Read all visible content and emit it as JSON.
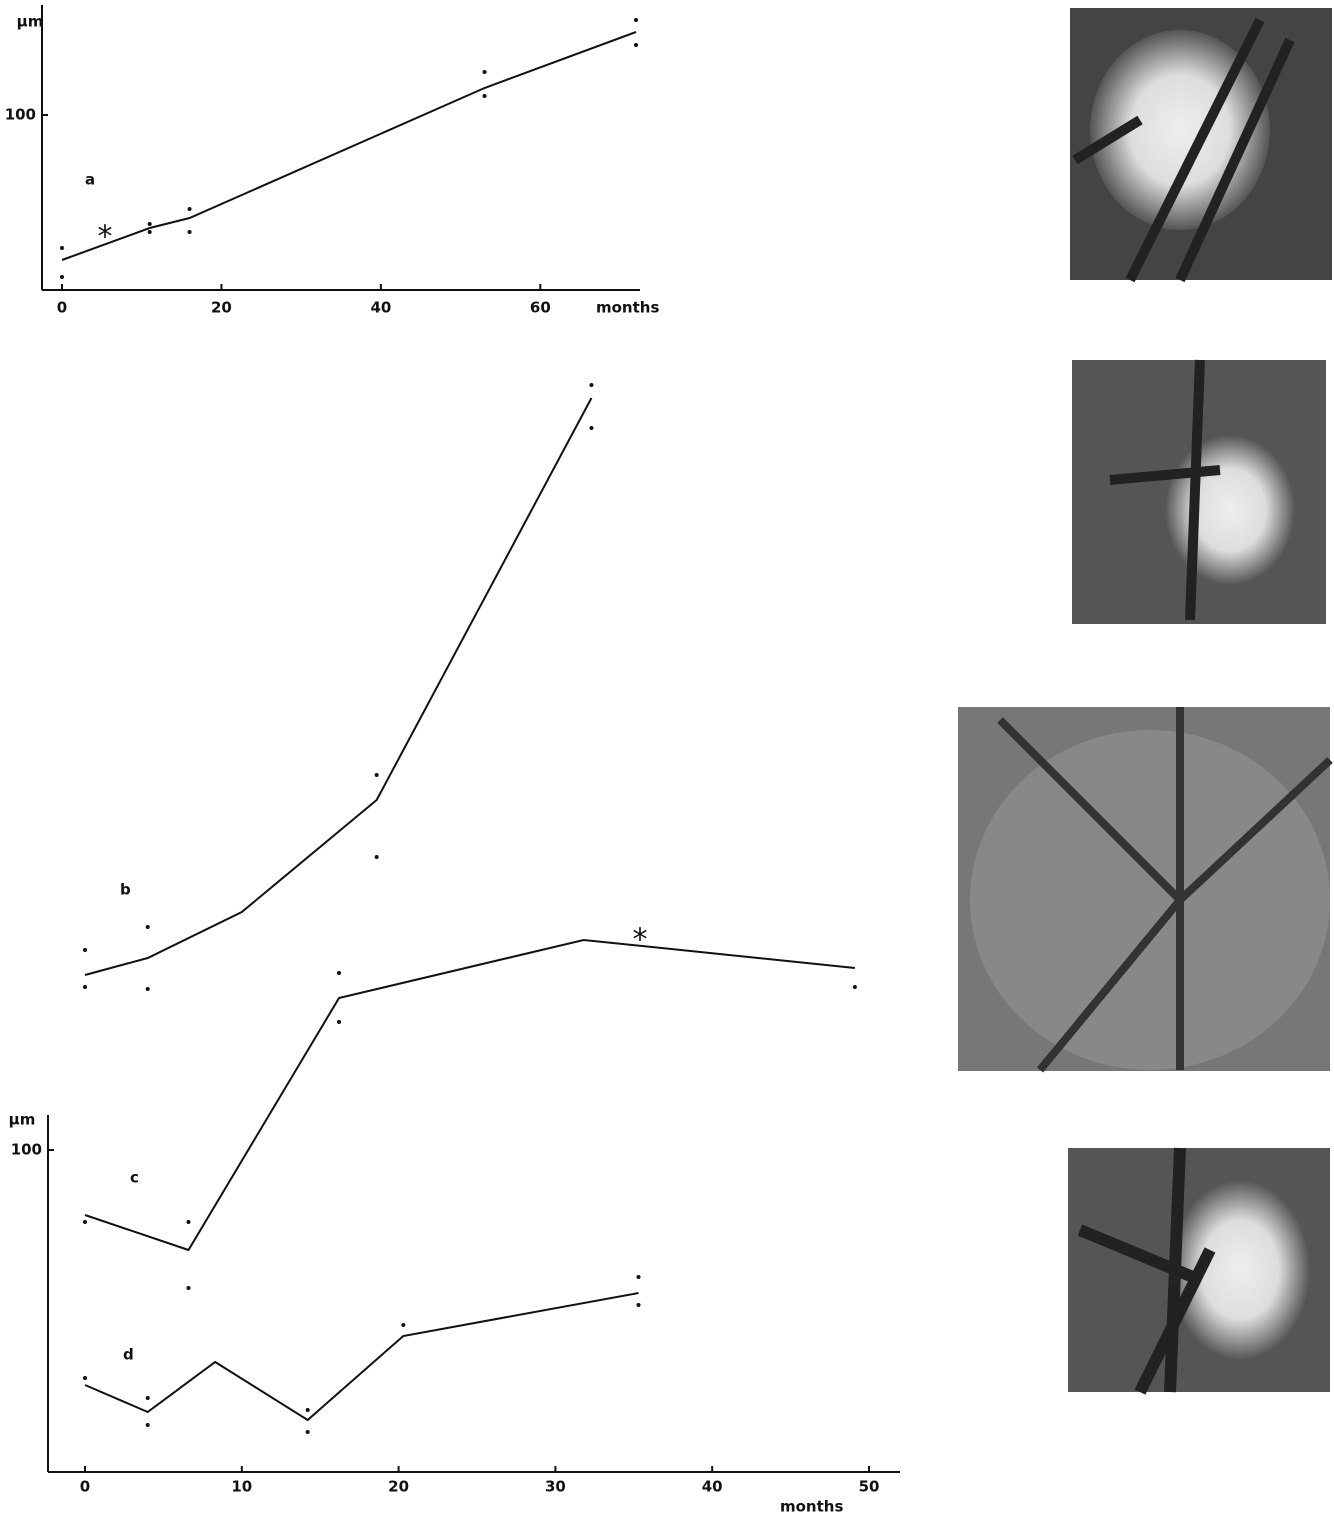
{
  "chart_data": [
    {
      "type": "line",
      "y_unit": "µm",
      "x_label": "months",
      "annotations": [
        "*"
      ],
      "xlim": [
        0,
        72
      ],
      "xticks": [
        0,
        20,
        40,
        60
      ],
      "ylim": [
        15,
        155
      ],
      "yticks": [
        100
      ],
      "series": [
        {
          "name": "a",
          "color": "#111",
          "x": [
            0,
            11,
            16,
            53,
            72
          ],
          "values": [
            27.5,
            43.5,
            48.5,
            113.5,
            141.5
          ],
          "dots_x": [
            0,
            0,
            11,
            11,
            16,
            16,
            53,
            53,
            72,
            72
          ],
          "dots_y": [
            33.5,
            19,
            45.5,
            41.5,
            53,
            41.5,
            121.5,
            109.5,
            147.5,
            135
          ]
        }
      ]
    },
    {
      "type": "line",
      "y_unit": "µm",
      "x_label": "months",
      "annotations": [
        "*"
      ],
      "xlim": [
        0,
        50
      ],
      "xticks": [
        0,
        10,
        20,
        30,
        40,
        50
      ],
      "ylim": [
        20,
        293.75
      ],
      "yticks": [
        100
      ],
      "series": [
        {
          "name": "b",
          "color": "#111",
          "x": [
            0,
            4,
            10,
            18.6,
            32.3
          ],
          "values": [
            143.75,
            148,
            159.5,
            187.5,
            288
          ],
          "dots_x": [
            0,
            0,
            4,
            4,
            18.6,
            18.6,
            32.3,
            32.3
          ],
          "dots_y": [
            150,
            140.75,
            155.75,
            140.25,
            193.75,
            173.25,
            291.25,
            280.5
          ]
        },
        {
          "name": "c",
          "color": "#111",
          "x": [
            0,
            6.6,
            16.2,
            31.8,
            49.1
          ],
          "values": [
            83.75,
            75,
            138,
            152.5,
            145.5
          ],
          "dots_x": [
            0,
            6.6,
            6.6,
            16.2,
            16.2,
            49.1
          ],
          "dots_y": [
            82,
            82,
            65.5,
            144.25,
            132,
            140.75
          ]
        },
        {
          "name": "d",
          "color": "#111",
          "x": [
            0,
            4,
            8.3,
            14.2,
            20.3,
            35.3
          ],
          "values": [
            41.25,
            34.5,
            47,
            32.5,
            53.5,
            64.25
          ],
          "dots_x": [
            0,
            4,
            4,
            14.2,
            14.2,
            20.3,
            35.3,
            35.3
          ],
          "dots_y": [
            43,
            38,
            31.25,
            35,
            29.5,
            56.25,
            68.25,
            61.25
          ]
        }
      ]
    }
  ]
}
